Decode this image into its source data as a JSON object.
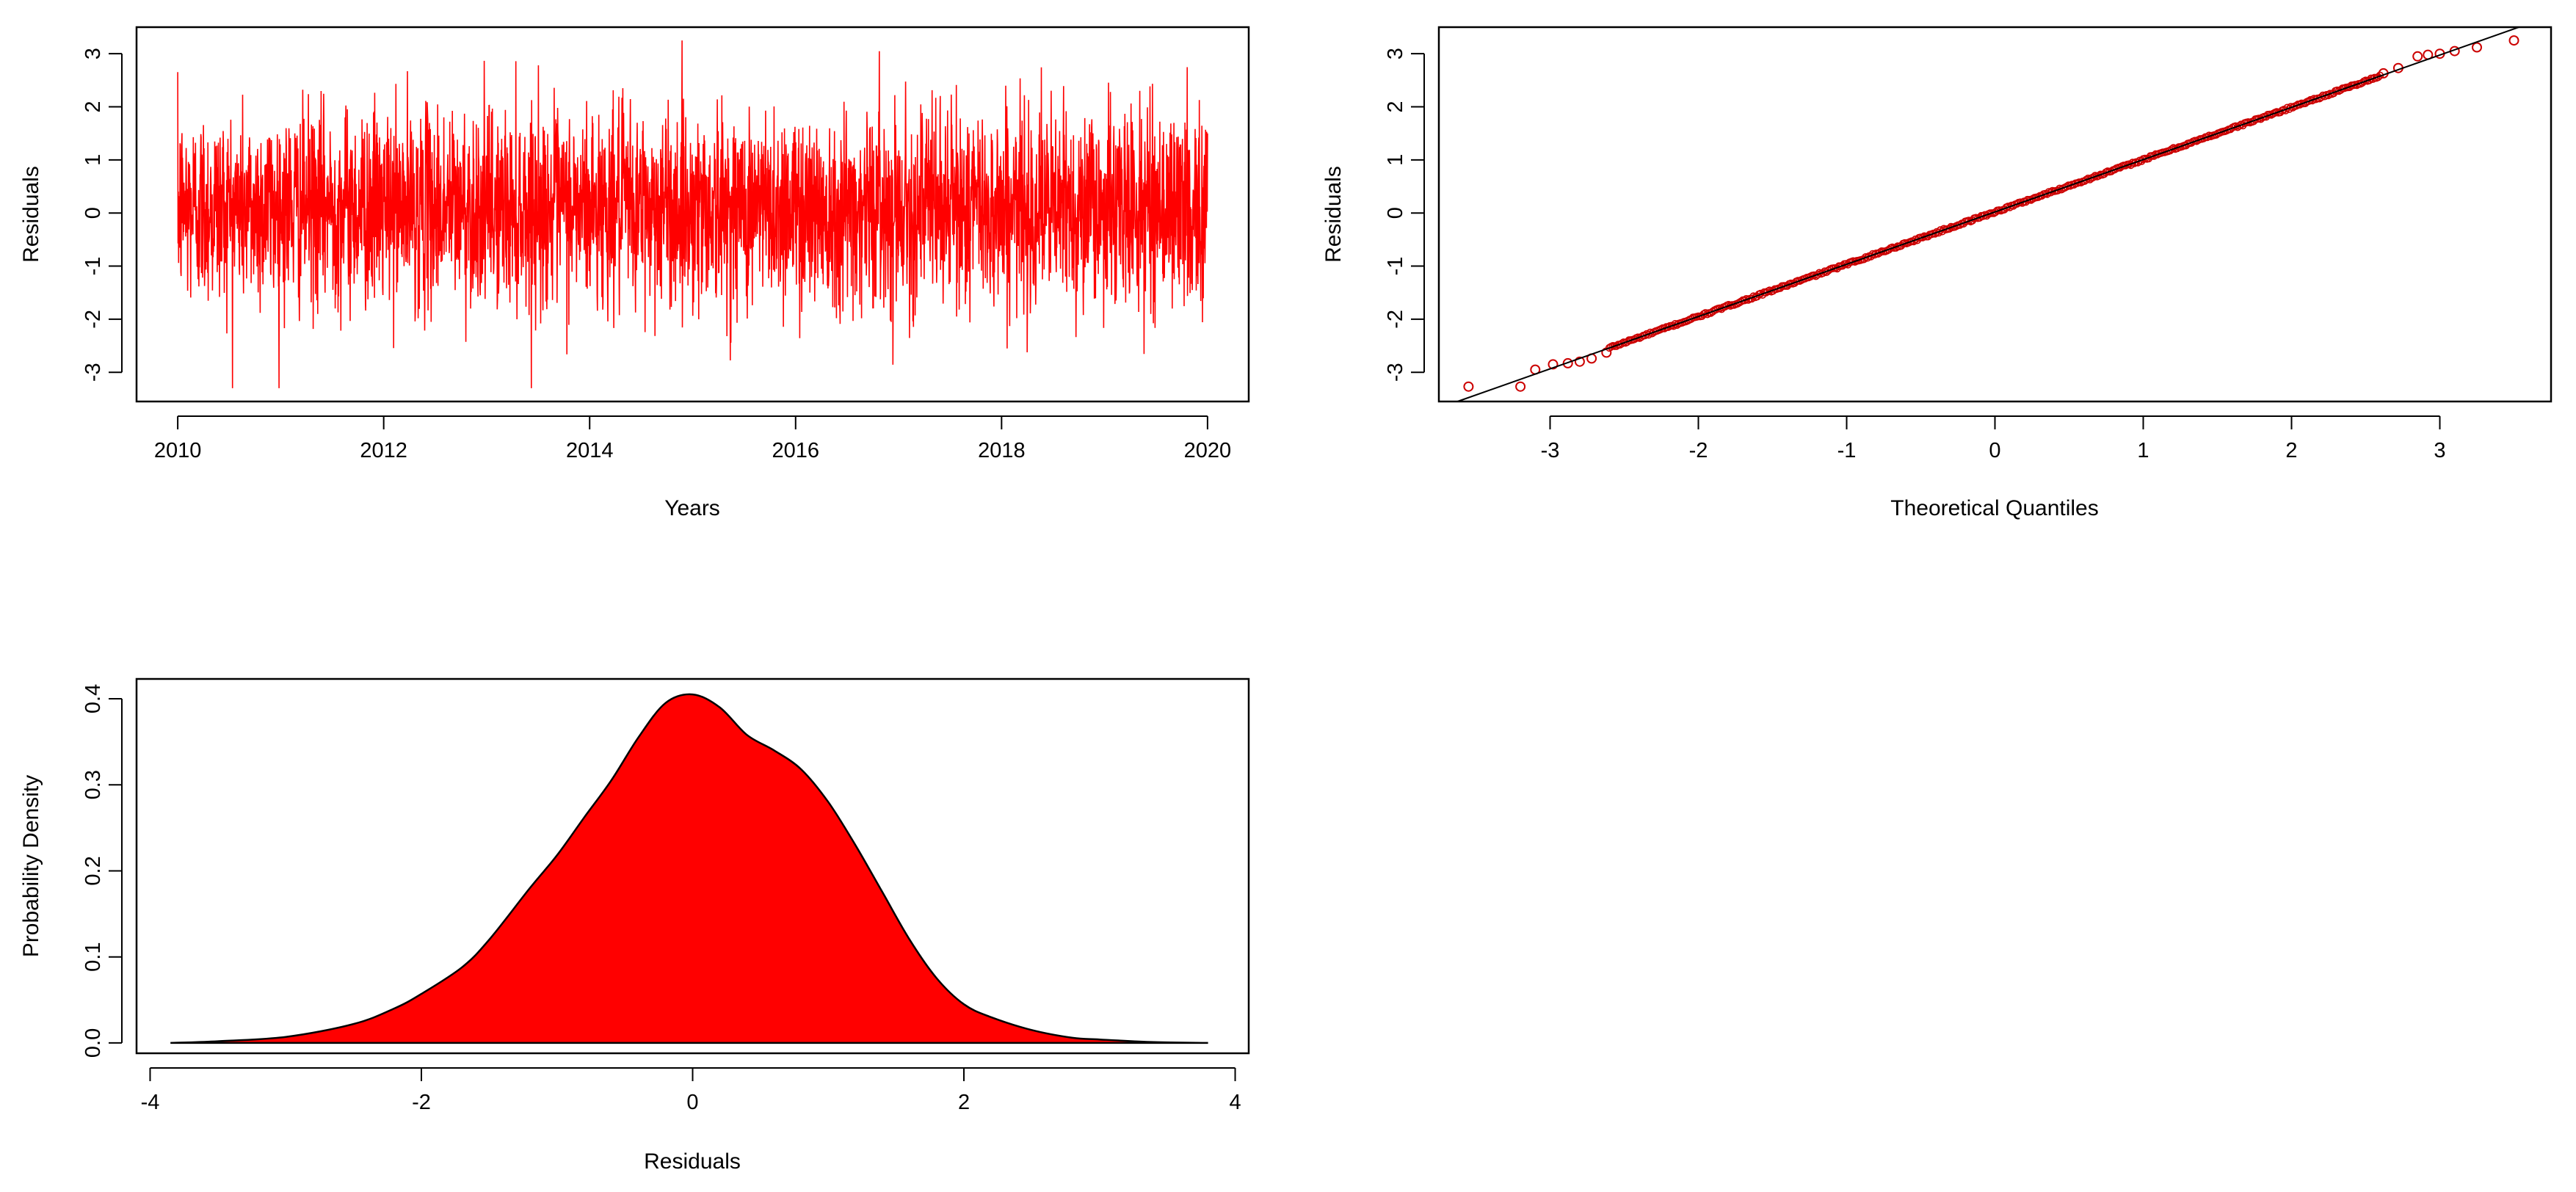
{
  "chart_data": [
    {
      "type": "line",
      "panel": "residual-time-series",
      "xlabel": "Years",
      "ylabel": "Residuals",
      "x_range": [
        2010,
        2020
      ],
      "xlim": [
        2009.6,
        2020.4
      ],
      "ylim": [
        -3.55,
        3.5
      ],
      "x_ticks": [
        2010,
        2012,
        2014,
        2016,
        2018,
        2020
      ],
      "y_ticks": [
        -3,
        -2,
        -1,
        0,
        1,
        2,
        3
      ],
      "x_tick_labels": [
        "2010",
        "2012",
        "2014",
        "2016",
        "2018",
        "2020"
      ],
      "y_tick_labels": [
        "-3",
        "-2",
        "-1",
        "0",
        "1",
        "2",
        "3"
      ],
      "frequency": "daily",
      "n_points": 3650,
      "y_min": -3.3,
      "y_max": 3.25,
      "line_color": "#ff0000",
      "grid": false
    },
    {
      "type": "scatter",
      "panel": "normal-qq-plot",
      "xlabel": "Theoretical Quantiles",
      "ylabel": "Residuals",
      "xlim": [
        -3.75,
        3.75
      ],
      "ylim": [
        -3.55,
        3.5
      ],
      "x_ticks": [
        -3,
        -2,
        -1,
        0,
        1,
        2,
        3
      ],
      "y_ticks": [
        -3,
        -2,
        -1,
        0,
        1,
        2,
        3
      ],
      "x_tick_labels": [
        "-3",
        "-2",
        "-1",
        "0",
        "1",
        "2",
        "3"
      ],
      "y_tick_labels": [
        "-3",
        "-2",
        "-1",
        "0",
        "1",
        "2",
        "3"
      ],
      "reference_line": {
        "slope": 0.985,
        "intercept": 0.02
      },
      "outer_points": [
        [
          -3.55,
          -3.27
        ],
        [
          -3.2,
          -3.27
        ],
        [
          -3.1,
          -2.95
        ],
        [
          -2.98,
          -2.85
        ],
        [
          -2.88,
          -2.83
        ],
        [
          -2.8,
          -2.8
        ],
        [
          -2.72,
          -2.74
        ],
        [
          -2.62,
          -2.63
        ],
        [
          2.62,
          2.63
        ],
        [
          2.72,
          2.73
        ],
        [
          2.85,
          2.95
        ],
        [
          2.92,
          2.98
        ],
        [
          3.0,
          3.0
        ],
        [
          3.1,
          3.05
        ],
        [
          3.25,
          3.12
        ],
        [
          3.5,
          3.25
        ]
      ],
      "marker_color": "#cc0000",
      "line_color": "#000000",
      "grid": false
    },
    {
      "type": "area",
      "panel": "residual-density",
      "xlabel": "Residuals",
      "ylabel": "Probability Density",
      "xlim": [
        -4.1,
        4.1
      ],
      "ylim": [
        -0.012,
        0.423
      ],
      "x_ticks": [
        -4,
        -2,
        0,
        2,
        4
      ],
      "y_ticks": [
        0.0,
        0.1,
        0.2,
        0.3,
        0.4
      ],
      "x_tick_labels": [
        "-4",
        "-2",
        "0",
        "2",
        "4"
      ],
      "y_tick_labels": [
        "0.0",
        "0.1",
        "0.2",
        "0.3",
        "0.4"
      ],
      "x": [
        -3.85,
        -3.5,
        -3.0,
        -2.5,
        -2.2,
        -2.0,
        -1.7,
        -1.5,
        -1.2,
        -1.0,
        -0.8,
        -0.6,
        -0.4,
        -0.2,
        0.0,
        0.2,
        0.4,
        0.6,
        0.8,
        1.0,
        1.2,
        1.4,
        1.6,
        1.8,
        2.0,
        2.2,
        2.5,
        2.8,
        3.0,
        3.4,
        3.8
      ],
      "y": [
        0.0,
        0.002,
        0.007,
        0.022,
        0.04,
        0.057,
        0.088,
        0.12,
        0.18,
        0.218,
        0.262,
        0.305,
        0.355,
        0.395,
        0.405,
        0.39,
        0.358,
        0.34,
        0.318,
        0.28,
        0.23,
        0.175,
        0.12,
        0.075,
        0.045,
        0.03,
        0.015,
        0.006,
        0.004,
        0.001,
        0.0
      ],
      "fill_color": "#ff0000",
      "line_color": "#000000",
      "grid": false
    }
  ]
}
